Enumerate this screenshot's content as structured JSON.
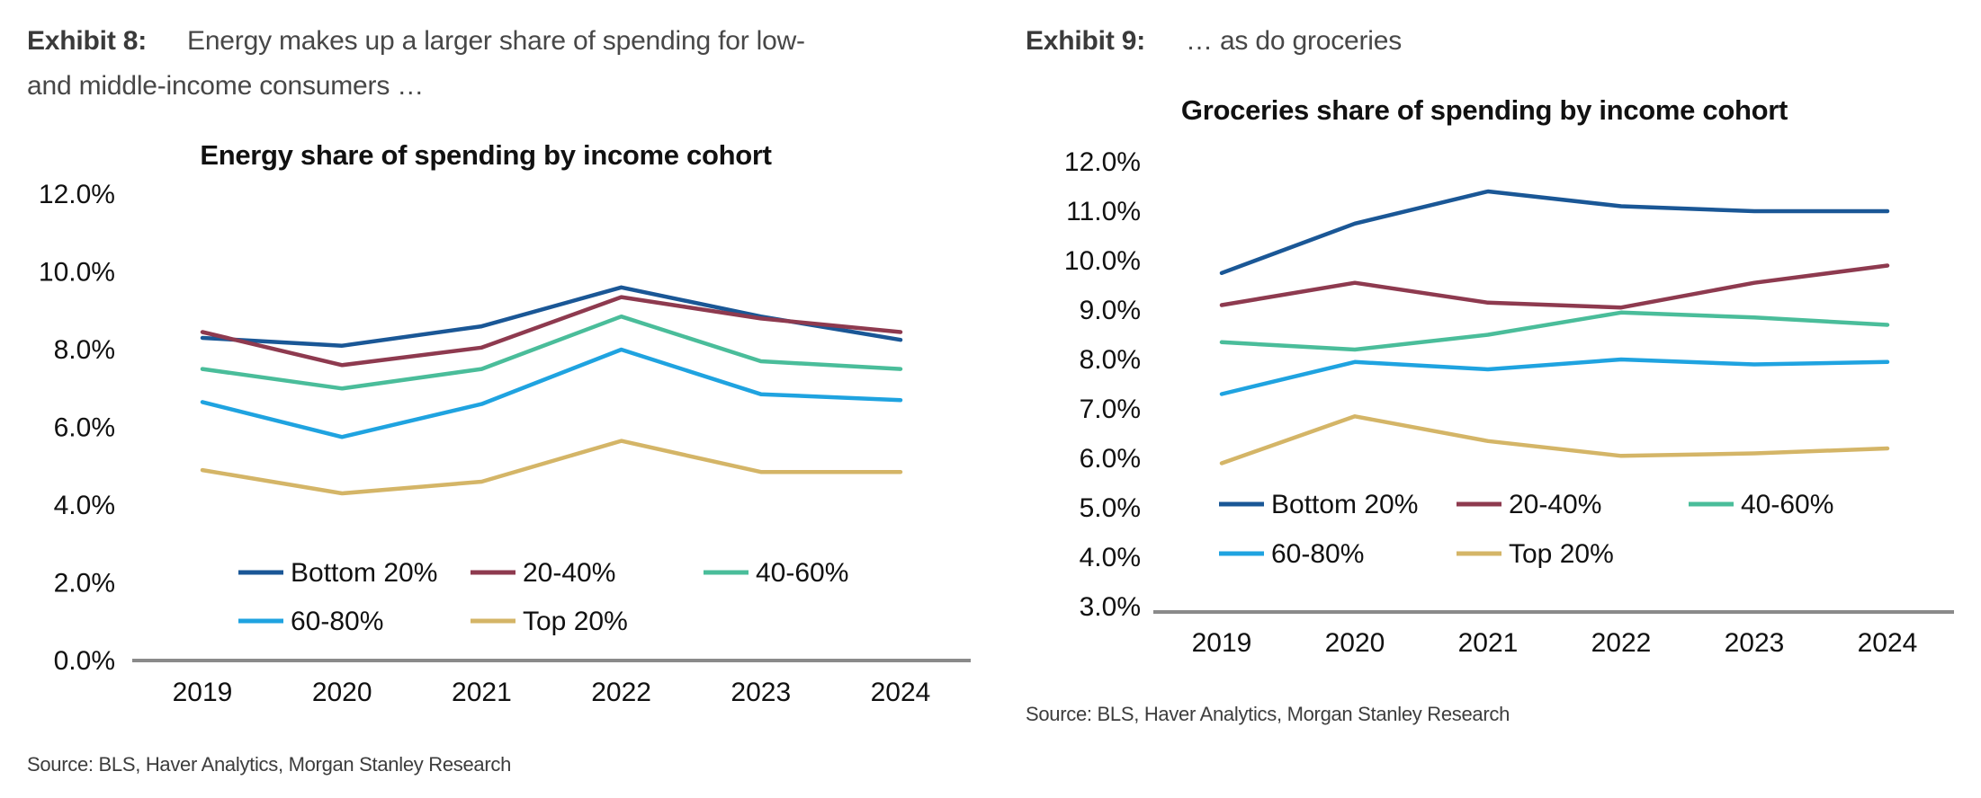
{
  "exhibits": [
    {
      "label": "Exhibit 8:",
      "caption_line1": "Energy makes up a larger share of spending for low-",
      "caption_line2": "and middle-income consumers …",
      "source": "Source: BLS, Haver Analytics, Morgan Stanley Research"
    },
    {
      "label": "Exhibit 9:",
      "caption_line1": "… as do groceries",
      "source": "Source: BLS, Haver Analytics, Morgan Stanley Research"
    }
  ],
  "colors": {
    "axis_line": "#8a8a8a",
    "title_text": "#111111",
    "tick_text": "#111111",
    "series_bottom20": "#1a5796",
    "series_20_40": "#8e3a4f",
    "series_40_60": "#4abd9a",
    "series_60_80": "#1fa3e0",
    "series_top20": "#d4b567"
  },
  "chart_data": [
    {
      "type": "line",
      "title": "Energy share of spending by income cohort",
      "categories": [
        "2019",
        "2020",
        "2021",
        "2022",
        "2023",
        "2024"
      ],
      "xlabel": "",
      "ylabel": "",
      "ylim": [
        0,
        12
      ],
      "ytick_step": 2,
      "ytick_labels": [
        "0.0%",
        "2.0%",
        "4.0%",
        "6.0%",
        "8.0%",
        "10.0%",
        "12.0%"
      ],
      "grid": false,
      "legend_position": "inside-bottom",
      "series": [
        {
          "name": "Bottom 20%",
          "color": "#1a5796",
          "values": [
            8.3,
            8.1,
            8.6,
            9.6,
            8.85,
            8.25
          ]
        },
        {
          "name": "20-40%",
          "color": "#8e3a4f",
          "values": [
            8.45,
            7.6,
            8.05,
            9.35,
            8.8,
            8.45
          ]
        },
        {
          "name": "40-60%",
          "color": "#4abd9a",
          "values": [
            7.5,
            7.0,
            7.5,
            8.85,
            7.7,
            7.5
          ]
        },
        {
          "name": "60-80%",
          "color": "#1fa3e0",
          "values": [
            6.65,
            5.75,
            6.6,
            8.0,
            6.85,
            6.7
          ]
        },
        {
          "name": "Top 20%",
          "color": "#d4b567",
          "values": [
            4.9,
            4.3,
            4.6,
            5.65,
            4.85,
            4.85
          ]
        }
      ]
    },
    {
      "type": "line",
      "title": "Groceries share of spending by income cohort",
      "categories": [
        "2019",
        "2020",
        "2021",
        "2022",
        "2023",
        "2024"
      ],
      "xlabel": "",
      "ylabel": "",
      "ylim": [
        3,
        12
      ],
      "ytick_step": 1,
      "ytick_labels": [
        "3.0%",
        "4.0%",
        "5.0%",
        "6.0%",
        "7.0%",
        "8.0%",
        "9.0%",
        "10.0%",
        "11.0%",
        "12.0%"
      ],
      "grid": false,
      "legend_position": "inside-bottom",
      "series": [
        {
          "name": "Bottom 20%",
          "color": "#1a5796",
          "values": [
            9.75,
            10.75,
            11.4,
            11.1,
            11.0,
            11.0
          ]
        },
        {
          "name": "20-40%",
          "color": "#8e3a4f",
          "values": [
            9.1,
            9.55,
            9.15,
            9.05,
            9.55,
            9.9
          ]
        },
        {
          "name": "40-60%",
          "color": "#4abd9a",
          "values": [
            8.35,
            8.2,
            8.5,
            8.95,
            8.85,
            8.7
          ]
        },
        {
          "name": "60-80%",
          "color": "#1fa3e0",
          "values": [
            7.3,
            7.95,
            7.8,
            8.0,
            7.9,
            7.95
          ]
        },
        {
          "name": "Top 20%",
          "color": "#d4b567",
          "values": [
            5.9,
            6.85,
            6.35,
            6.05,
            6.1,
            6.2
          ]
        }
      ]
    }
  ]
}
